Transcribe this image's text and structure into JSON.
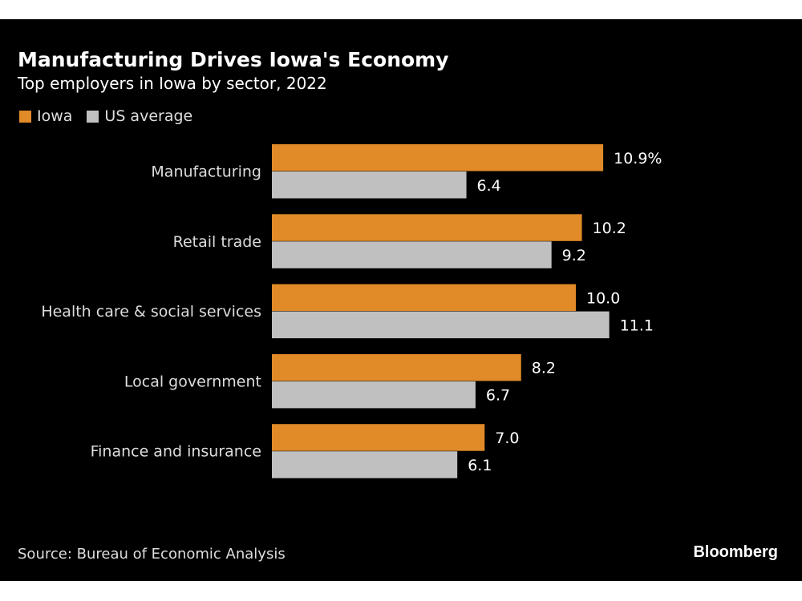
{
  "title": "Manufacturing Drives Iowa's Economy",
  "subtitle": "Top employers in Iowa by sector, 2022",
  "source": "Source: Bureau of Economic Analysis",
  "brand": "Bloomberg",
  "chart_data": {
    "type": "bar",
    "orientation": "horizontal",
    "categories": [
      "Manufacturing",
      "Retail trade",
      "Health care & social services",
      "Local government",
      "Finance and insurance"
    ],
    "series": [
      {
        "name": "Iowa",
        "color": "#e08a28",
        "values": [
          10.9,
          10.2,
          10.0,
          8.2,
          7.0
        ],
        "labels": [
          "10.9%",
          "10.2",
          "10.0",
          "8.2",
          "7.0"
        ]
      },
      {
        "name": "US average",
        "color": "#c0c0c0",
        "values": [
          6.4,
          9.2,
          11.1,
          6.7,
          6.1
        ],
        "labels": [
          "6.4",
          "9.2",
          "11.1",
          "6.7",
          "6.1"
        ]
      }
    ],
    "unit": "%",
    "xlim": [
      0,
      17.5
    ],
    "grid": false,
    "legend_position": "top-left"
  }
}
